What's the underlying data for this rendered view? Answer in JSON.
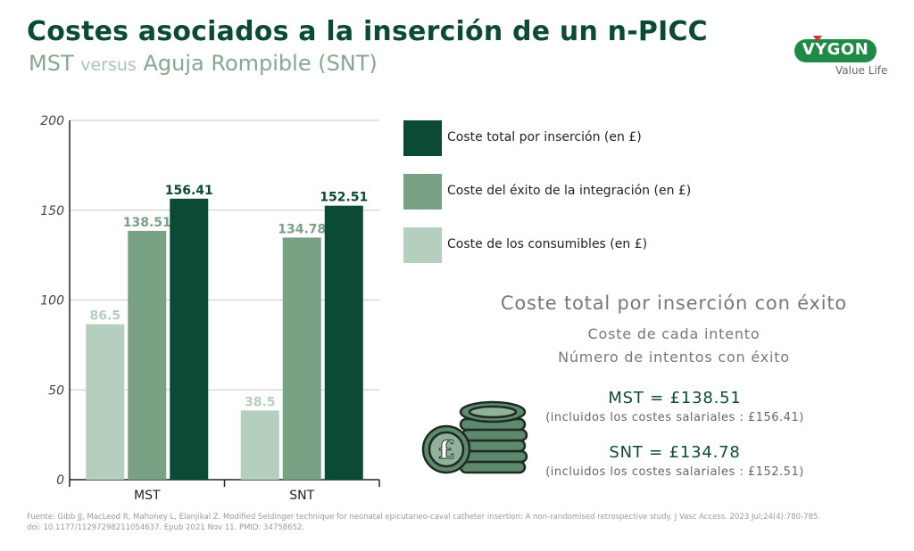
{
  "header": {
    "title": "Costes asociados a la inserción de un n-PICC",
    "subtitle_a": "MST",
    "subtitle_vs": "versus",
    "subtitle_b": "Aguja Rompible (SNT)"
  },
  "logo": {
    "name": "VYGON",
    "tagline": "Value Life"
  },
  "colors": {
    "dark": "#0b4a35",
    "mid": "#79a285",
    "light": "#b4cfbd",
    "title": "#0b4a35"
  },
  "chart_data": {
    "type": "bar",
    "categories": [
      "MST",
      "SNT"
    ],
    "series": [
      {
        "name": "Coste de los consumibles (en £)",
        "values": [
          86.5,
          38.5
        ],
        "color": "#b4cfbd"
      },
      {
        "name": "Coste del éxito de la integración (en £)",
        "values": [
          138.51,
          134.78
        ],
        "color": "#79a285"
      },
      {
        "name": "Coste total por inserción (en £)",
        "values": [
          156.41,
          152.51
        ],
        "color": "#0b4a35"
      }
    ],
    "ylim": [
      0,
      200
    ],
    "yticks": [
      0,
      50,
      100,
      150,
      200
    ],
    "grid": true,
    "legend_placement": "right"
  },
  "legend": [
    {
      "label": "Coste total por inserción (en £)",
      "color": "#0b4a35"
    },
    {
      "label": "Coste del éxito de la integración (en £)",
      "color": "#79a285"
    },
    {
      "label": "Coste de los consumibles (en £)",
      "color": "#b4cfbd"
    }
  ],
  "summary": {
    "title": "Coste total por inserción con éxito",
    "line1": "Coste de cada intento",
    "line2": "Número de intentos con éxito",
    "mst_main": "MST = £138.51",
    "mst_sub": "(incluidos los costes salariales : £156.41)",
    "snt_main": "SNT = £134.78",
    "snt_sub": "(incluidos los costes salariales : £152.51)"
  },
  "icons": {
    "coins": "pound-coins-icon"
  },
  "footer": {
    "source": "Fuente: Gibb JJ, MacLeod R, Mahoney L, Elanjikal Z. Modified Seldinger technique for neonatal epicutaneo-caval catheter insertion: A non-randomised retrospective study. J Vasc Access. 2023 Jul;24(4):780-785. doi: 10.1177/11297298211054637. Epub 2021 Nov 11. PMID: 34758652."
  }
}
